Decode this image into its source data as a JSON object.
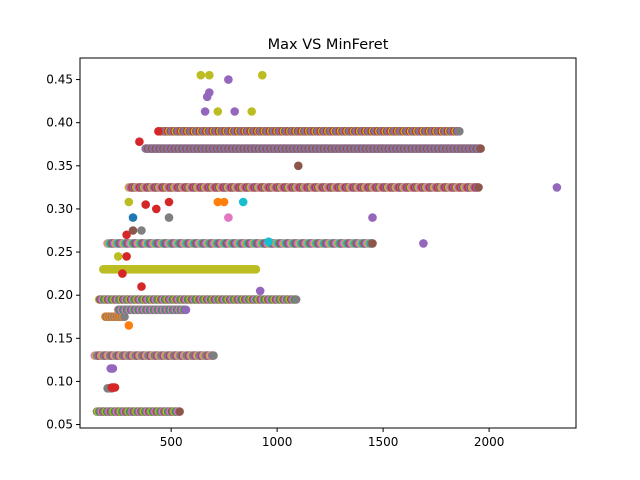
{
  "chart_data": {
    "type": "scatter",
    "title": "Max VS MinFeret",
    "xlabel": "",
    "ylabel": "",
    "xlim": [
      70,
      2410
    ],
    "ylim": [
      0.046,
      0.475
    ],
    "x_ticks": [
      500,
      1000,
      1500,
      2000
    ],
    "y_ticks": [
      0.05,
      0.1,
      0.15,
      0.2,
      0.25,
      0.3,
      0.35,
      0.4,
      0.45
    ],
    "x_tick_labels": [
      "500",
      "1000",
      "1500",
      "2000"
    ],
    "y_tick_labels": [
      "0.05",
      "0.10",
      "0.15",
      "0.20",
      "0.25",
      "0.30",
      "0.35",
      "0.40",
      "0.45"
    ],
    "grid": false,
    "legend": "none",
    "series_colors": [
      "#1f77b4",
      "#ff7f0e",
      "#2ca02c",
      "#d62728",
      "#9467bd",
      "#8c564b",
      "#e377c2",
      "#7f7f7f",
      "#bcbd22",
      "#17becf"
    ],
    "bands": [
      {
        "y": 0.065,
        "x_min": 150,
        "x_max": 540,
        "colors": [
          "#7f7f7f",
          "#bcbd22",
          "#2ca02c",
          "#9467bd",
          "#e377c2",
          "#8c564b"
        ]
      },
      {
        "y": 0.092,
        "x_min": 200,
        "x_max": 220,
        "colors": [
          "#7f7f7f"
        ]
      },
      {
        "y": 0.093,
        "x_min": 220,
        "x_max": 235,
        "colors": [
          "#d62728"
        ]
      },
      {
        "y": 0.115,
        "x_min": 215,
        "x_max": 225,
        "colors": [
          "#9467bd"
        ]
      },
      {
        "y": 0.13,
        "x_min": 140,
        "x_max": 700,
        "colors": [
          "#7f7f7f",
          "#bcbd22",
          "#8c564b",
          "#9467bd",
          "#e377c2"
        ]
      },
      {
        "y": 0.175,
        "x_min": 190,
        "x_max": 280,
        "colors": [
          "#7f7f7f",
          "#ff7f0e"
        ]
      },
      {
        "y": 0.183,
        "x_min": 250,
        "x_max": 570,
        "colors": [
          "#e377c2",
          "#2ca02c",
          "#9467bd"
        ]
      },
      {
        "y": 0.195,
        "x_min": 160,
        "x_max": 1090,
        "colors": [
          "#7f7f7f",
          "#bcbd22",
          "#8c564b",
          "#9467bd",
          "#e377c2",
          "#2ca02c"
        ]
      },
      {
        "y": 0.23,
        "x_min": 180,
        "x_max": 900,
        "colors": [
          "#7f7f7f",
          "#bcbd22",
          "#2ca02c",
          "#1f77b4",
          "#17becf",
          "#8c564b",
          "#e377c2"
        ]
      },
      {
        "y": 0.26,
        "x_min": 200,
        "x_max": 1450,
        "colors": [
          "#7f7f7f",
          "#8c564b",
          "#9467bd",
          "#e377c2",
          "#bcbd22",
          "#17becf"
        ]
      },
      {
        "y": 0.325,
        "x_min": 300,
        "x_max": 1950,
        "colors": [
          "#7f7f7f",
          "#d62728",
          "#9467bd",
          "#8c564b",
          "#bcbd22",
          "#e377c2"
        ]
      },
      {
        "y": 0.37,
        "x_min": 380,
        "x_max": 1960,
        "colors": [
          "#9467bd",
          "#8c564b",
          "#7f7f7f"
        ]
      },
      {
        "y": 0.39,
        "x_min": 450,
        "x_max": 1860,
        "colors": [
          "#9467bd",
          "#bcbd22",
          "#7f7f7f",
          "#8c564b",
          "#d62728"
        ]
      }
    ],
    "points": [
      {
        "x": 640,
        "y": 0.455,
        "color": "#bcbd22"
      },
      {
        "x": 680,
        "y": 0.455,
        "color": "#bcbd22"
      },
      {
        "x": 930,
        "y": 0.455,
        "color": "#bcbd22"
      },
      {
        "x": 770,
        "y": 0.45,
        "color": "#9467bd"
      },
      {
        "x": 680,
        "y": 0.435,
        "color": "#9467bd"
      },
      {
        "x": 670,
        "y": 0.43,
        "color": "#9467bd"
      },
      {
        "x": 660,
        "y": 0.413,
        "color": "#9467bd"
      },
      {
        "x": 720,
        "y": 0.413,
        "color": "#bcbd22"
      },
      {
        "x": 800,
        "y": 0.413,
        "color": "#9467bd"
      },
      {
        "x": 880,
        "y": 0.413,
        "color": "#bcbd22"
      },
      {
        "x": 2320,
        "y": 0.325,
        "color": "#9467bd"
      },
      {
        "x": 1450,
        "y": 0.29,
        "color": "#9467bd"
      },
      {
        "x": 1690,
        "y": 0.26,
        "color": "#9467bd"
      },
      {
        "x": 920,
        "y": 0.205,
        "color": "#9467bd"
      },
      {
        "x": 1100,
        "y": 0.35,
        "color": "#8c564b"
      },
      {
        "x": 770,
        "y": 0.29,
        "color": "#e377c2"
      },
      {
        "x": 720,
        "y": 0.308,
        "color": "#ff7f0e"
      },
      {
        "x": 750,
        "y": 0.308,
        "color": "#ff7f0e"
      },
      {
        "x": 840,
        "y": 0.308,
        "color": "#17becf"
      },
      {
        "x": 300,
        "y": 0.308,
        "color": "#bcbd22"
      },
      {
        "x": 380,
        "y": 0.305,
        "color": "#d62728"
      },
      {
        "x": 430,
        "y": 0.3,
        "color": "#d62728"
      },
      {
        "x": 490,
        "y": 0.308,
        "color": "#d62728"
      },
      {
        "x": 320,
        "y": 0.29,
        "color": "#1f77b4"
      },
      {
        "x": 490,
        "y": 0.29,
        "color": "#7f7f7f"
      },
      {
        "x": 350,
        "y": 0.378,
        "color": "#d62728"
      },
      {
        "x": 440,
        "y": 0.39,
        "color": "#d62728"
      },
      {
        "x": 290,
        "y": 0.27,
        "color": "#d62728"
      },
      {
        "x": 250,
        "y": 0.245,
        "color": "#bcbd22"
      },
      {
        "x": 270,
        "y": 0.225,
        "color": "#d62728"
      },
      {
        "x": 290,
        "y": 0.245,
        "color": "#d62728"
      },
      {
        "x": 320,
        "y": 0.275,
        "color": "#8c564b"
      },
      {
        "x": 360,
        "y": 0.275,
        "color": "#7f7f7f"
      },
      {
        "x": 960,
        "y": 0.262,
        "color": "#17becf"
      },
      {
        "x": 360,
        "y": 0.21,
        "color": "#d62728"
      },
      {
        "x": 300,
        "y": 0.165,
        "color": "#ff7f0e"
      }
    ]
  }
}
